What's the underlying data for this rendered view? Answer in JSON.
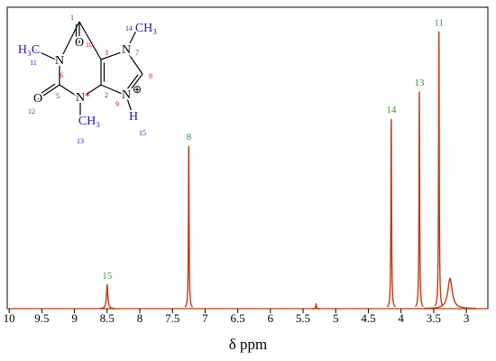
{
  "chart_data": {
    "type": "spectrum",
    "x_label": "δ ppm",
    "xlim": [
      10.03,
      2.67
    ],
    "xticks": [
      10,
      9.5,
      9,
      8.5,
      8,
      7.5,
      7,
      6.5,
      6,
      5.5,
      5,
      4.5,
      4,
      3.5,
      3
    ],
    "ylim": [
      0,
      1
    ],
    "color": "#c23a14",
    "label_color": "#2e9a3a",
    "peaks": {
      "x": [
        8.5,
        7.25,
        5.3,
        4.15,
        3.72,
        3.42,
        3.25
      ],
      "values": [
        0.08,
        0.54,
        0.015,
        0.63,
        0.72,
        0.92,
        0.1
      ],
      "widths": [
        0.012,
        0.006,
        0.006,
        0.006,
        0.006,
        0.006,
        0.04
      ],
      "labels": [
        "15",
        "8",
        null,
        "14",
        "13",
        "11",
        null
      ]
    },
    "structure": {
      "atoms": [
        {
          "symbol": "O",
          "number": "10"
        },
        {
          "symbol": "",
          "number": "1"
        },
        {
          "symbol": "N",
          "number": "6"
        },
        {
          "symbol": "H₃C",
          "number": "11"
        },
        {
          "symbol": "",
          "number": "5"
        },
        {
          "symbol": "O",
          "number": "12"
        },
        {
          "symbol": "N",
          "number": "4"
        },
        {
          "symbol": "CH₃",
          "number": "13"
        },
        {
          "symbol": "",
          "number": "2"
        },
        {
          "symbol": "",
          "number": "3"
        },
        {
          "symbol": "N",
          "number": "7"
        },
        {
          "symbol": "CH₃",
          "number": "14"
        },
        {
          "symbol": "",
          "number": "8"
        },
        {
          "symbol": "N",
          "number": "9"
        },
        {
          "symbol": "H",
          "number": "15"
        }
      ],
      "charge": "⊕"
    }
  }
}
